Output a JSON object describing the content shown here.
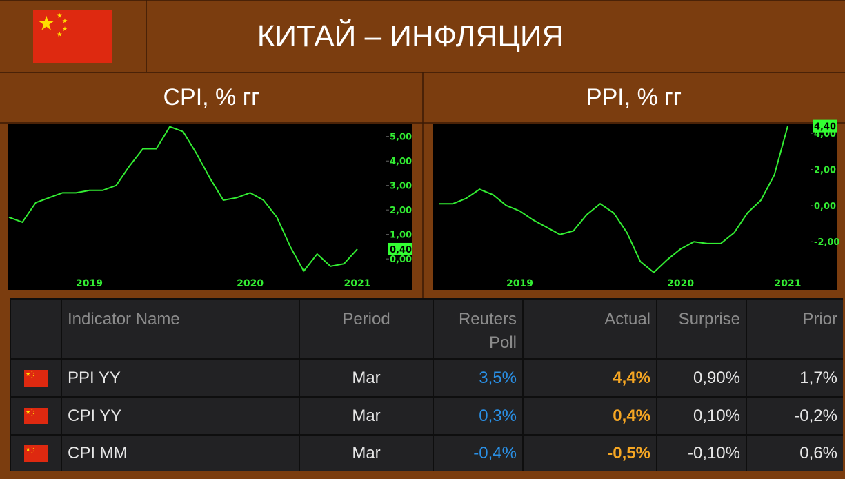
{
  "header": {
    "title": "КИТАЙ – ИНФЛЯЦИЯ"
  },
  "chart_data": [
    {
      "type": "line",
      "title": "CPI, % гг",
      "categories": [
        null,
        null,
        null,
        null,
        null,
        null,
        "2019",
        null,
        null,
        null,
        null,
        null,
        null,
        null,
        null,
        null,
        null,
        null,
        "2020",
        null,
        null,
        null,
        null,
        null,
        null,
        null,
        "2021"
      ],
      "series": [
        {
          "color": "#33ee33",
          "values": [
            1.7,
            1.5,
            2.3,
            2.5,
            2.7,
            2.7,
            2.8,
            2.8,
            3.0,
            3.8,
            4.5,
            4.5,
            5.4,
            5.2,
            4.3,
            3.3,
            2.4,
            2.5,
            2.7,
            2.4,
            1.7,
            0.5,
            -0.5,
            0.2,
            -0.3,
            -0.2,
            0.4
          ],
          "value_labels": [
            null,
            null,
            null,
            null,
            null,
            null,
            null,
            null,
            null,
            null,
            null,
            null,
            null,
            null,
            null,
            null,
            null,
            null,
            null,
            null,
            null,
            null,
            null,
            null,
            null,
            null,
            "0,40"
          ]
        }
      ],
      "ylim": [
        -0.7,
        5.5
      ],
      "yticks": [
        {
          "value": 0,
          "label": "0,00"
        },
        {
          "value": 1,
          "label": "1,00"
        },
        {
          "value": 2,
          "label": "2,00"
        },
        {
          "value": 3,
          "label": "3,00"
        },
        {
          "value": 4,
          "label": "4,00"
        },
        {
          "value": 5,
          "label": "5,00"
        }
      ]
    },
    {
      "type": "line",
      "title": "PPI, % гг",
      "categories": [
        null,
        null,
        null,
        null,
        null,
        null,
        "2019",
        null,
        null,
        null,
        null,
        null,
        null,
        null,
        null,
        null,
        null,
        null,
        "2020",
        null,
        null,
        null,
        null,
        null,
        null,
        null,
        "2021"
      ],
      "series": [
        {
          "color": "#33ee33",
          "values": [
            0.1,
            0.1,
            0.4,
            0.9,
            0.6,
            0.0,
            -0.3,
            -0.8,
            -1.2,
            -1.6,
            -1.4,
            -0.5,
            0.1,
            -0.4,
            -1.5,
            -3.1,
            -3.7,
            -3.0,
            -2.4,
            -2.0,
            -2.1,
            -2.1,
            -1.5,
            -0.4,
            0.3,
            1.7,
            4.4
          ],
          "value_labels": [
            null,
            null,
            null,
            null,
            null,
            null,
            null,
            null,
            null,
            null,
            null,
            null,
            null,
            null,
            null,
            null,
            null,
            null,
            null,
            null,
            null,
            null,
            null,
            null,
            null,
            null,
            "4,40"
          ]
        }
      ],
      "ylim": [
        -3.9,
        4.5
      ],
      "yticks": [
        {
          "value": -2,
          "label": "-2,00"
        },
        {
          "value": 0,
          "label": "0,00"
        },
        {
          "value": 2,
          "label": "2,00"
        },
        {
          "value": 4,
          "label": "4,00"
        }
      ]
    }
  ],
  "table": {
    "columns": [
      "Indicator Name",
      "Period",
      "Reuters Poll",
      "Actual",
      "Surprise",
      "Prior"
    ],
    "rows": [
      [
        "PPI YY",
        "Mar",
        "3,5%",
        "4,4%",
        "0,90%",
        "1,7%"
      ],
      [
        "CPI YY",
        "Mar",
        "0,3%",
        "0,4%",
        "0,10%",
        "-0,2%"
      ],
      [
        "CPI MM",
        "Mar",
        "-0,4%",
        "-0,5%",
        "-0,10%",
        "0,6%"
      ]
    ]
  }
}
